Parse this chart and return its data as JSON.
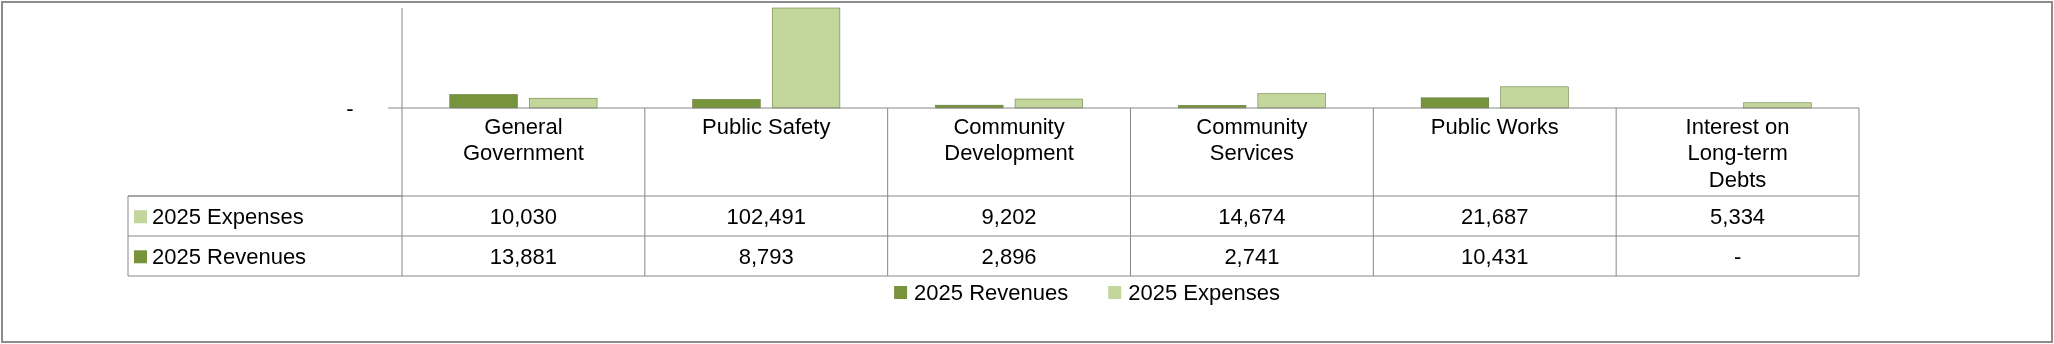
{
  "chart_data": {
    "type": "bar",
    "categories": [
      "General Government",
      "Public Safety",
      "Community Development",
      "Community Services",
      "Public Works",
      "Interest on Long-term Debts"
    ],
    "series": [
      {
        "name": "2025 Revenues",
        "color": "#77933c",
        "values": [
          13881,
          8793,
          2896,
          2741,
          10431,
          0
        ],
        "value_labels": [
          "13,881",
          "8,793",
          "2,896",
          "2,741",
          "10,431",
          "-"
        ]
      },
      {
        "name": "2025 Expenses",
        "color": "#c3d69b",
        "values": [
          10030,
          102491,
          9202,
          14674,
          21687,
          5334
        ],
        "value_labels": [
          "10,030",
          "102,491",
          "9,202",
          "14,674",
          "21,687",
          "5,334"
        ]
      }
    ],
    "annotations": [
      "-"
    ],
    "legend": "bottom"
  }
}
